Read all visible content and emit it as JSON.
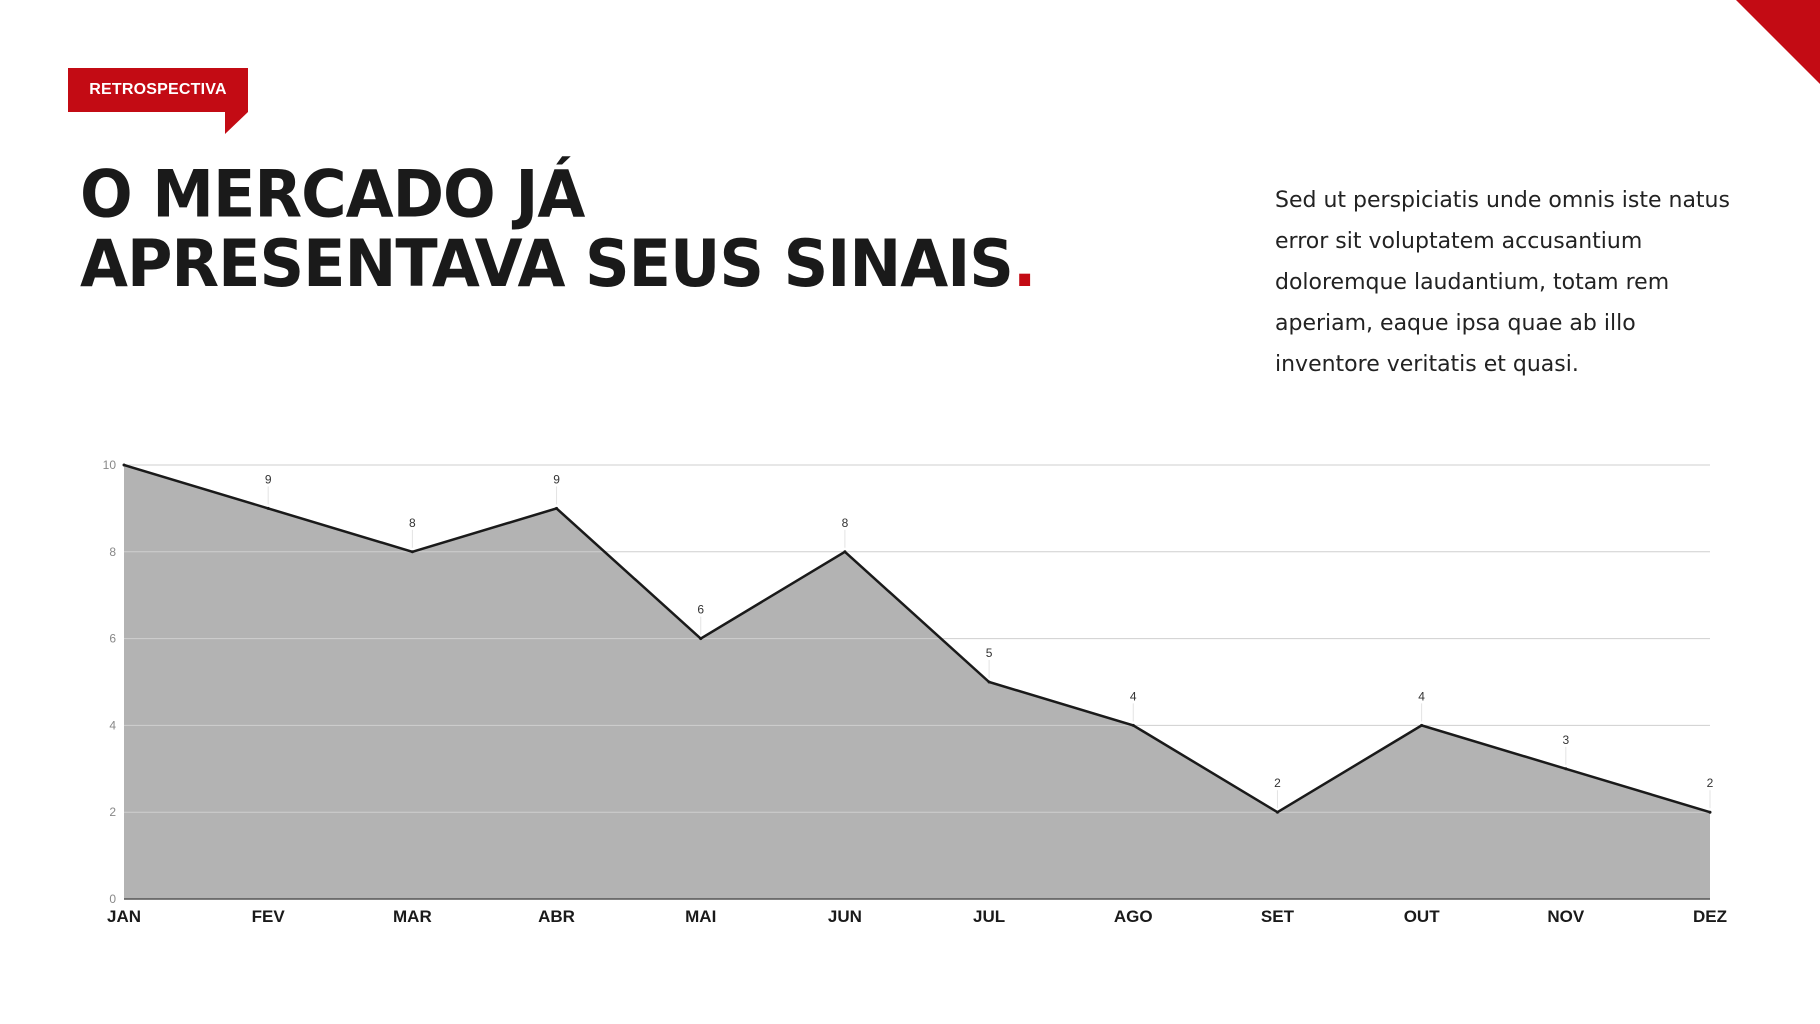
{
  "tag": {
    "label": "RETROSPECTIVA"
  },
  "title": {
    "line1": "O MERCADO JÁ",
    "line2": "APRESENTAVA SEUS SINAIS",
    "dot": "."
  },
  "description": "Sed ut perspiciatis unde omnis iste natus error sit voluptatem accusantium doloremque laudantium, totam rem aperiam, eaque ipsa quae ab illo inventore veritatis et quasi.",
  "colors": {
    "accent": "#c30b14",
    "area_fill": "#b3b3b3",
    "line": "#1a1a1a",
    "grid": "#cfcfcf"
  },
  "chart_data": {
    "type": "area",
    "categories": [
      "JAN",
      "FEV",
      "MAR",
      "ABR",
      "MAI",
      "JUN",
      "JUL",
      "AGO",
      "SET",
      "OUT",
      "NOV",
      "DEZ"
    ],
    "values": [
      10,
      9,
      8,
      9,
      6,
      8,
      5,
      4,
      2,
      4,
      3,
      2
    ],
    "data_labels": [
      "",
      "9",
      "8",
      "9",
      "6",
      "8",
      "5",
      "4",
      "2",
      "4",
      "3",
      "2"
    ],
    "y_ticks": [
      "0",
      "2",
      "4",
      "6",
      "8",
      "10"
    ],
    "ylim": [
      0,
      10
    ],
    "grid": true
  }
}
